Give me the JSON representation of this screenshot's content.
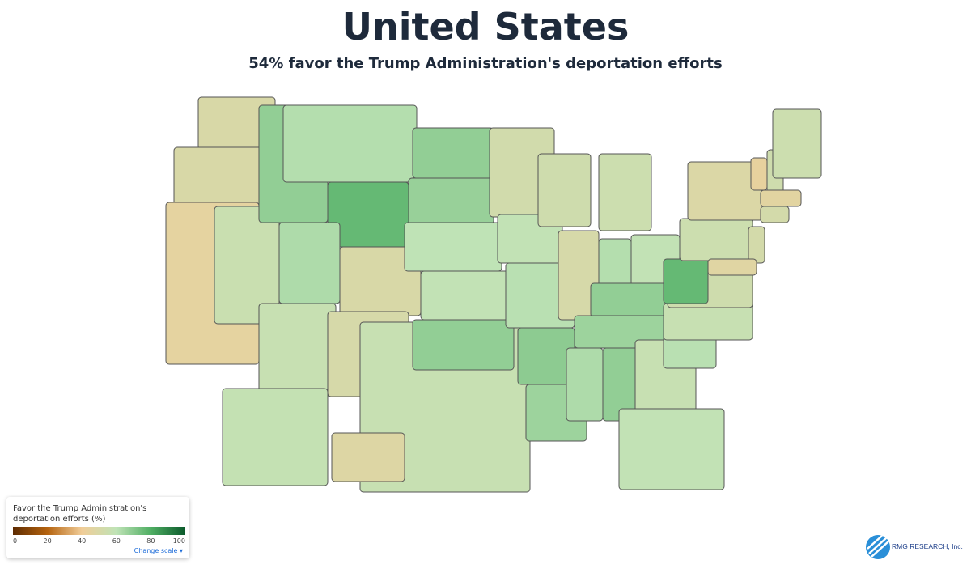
{
  "title": "United States",
  "subtitle": "54% favor the Trump Administration's deportation efforts",
  "map": {
    "type": "choropleth",
    "values": [
      50,
      50,
      45,
      56,
      68,
      62,
      76,
      63,
      50,
      57,
      51,
      68,
      67,
      60,
      59,
      57,
      68,
      53,
      59,
      61,
      69,
      66,
      54,
      51,
      55,
      62,
      59,
      68,
      66,
      63,
      68,
      57,
      59,
      61,
      57,
      54,
      76,
      55,
      49,
      44,
      54,
      55,
      46,
      52,
      52,
      47,
      58,
      48
    ]
  },
  "legend": {
    "title": "Favor the Trump Administration's deportation efforts (%)",
    "ticks": [
      0,
      20,
      40,
      60,
      80,
      100
    ],
    "colors": [
      "#5e2c02",
      "#b5630f",
      "#f1cd98",
      "#bfe3b6",
      "#4fae63",
      "#0b5a2b"
    ],
    "link": "Change scale ▾"
  },
  "logo": "RMG RESEARCH, Inc."
}
